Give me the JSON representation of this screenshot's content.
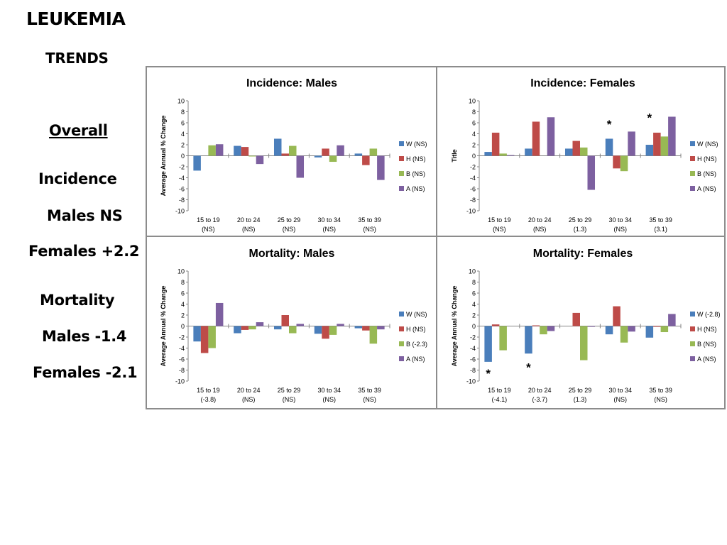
{
  "sidebar": {
    "title": "LEUKEMIA",
    "subtitle": "TRENDS",
    "overall": "Overall",
    "incidence": "Incidence",
    "incidence_males": "Males NS",
    "incidence_females": "Females +2.2",
    "mortality": "Mortality",
    "mortality_males": "Males -1.4",
    "mortality_females": "Females -2.1"
  },
  "colors": {
    "W": "#4a7ebb",
    "H": "#be4b48",
    "B": "#98b954",
    "A": "#7d60a0",
    "axis": "#868686",
    "frame": "#8c8c8c"
  },
  "chart_data": [
    {
      "type": "bar",
      "title": "Incidence: Males",
      "ylabel": "Average Annual % Change",
      "xlabel": "",
      "ylim": [
        -10,
        10
      ],
      "yticks": [
        10,
        8,
        6,
        4,
        2,
        0,
        -2,
        -4,
        -6,
        -8,
        -10
      ],
      "categories": [
        "15 to 19",
        "20 to 24",
        "25 to 29",
        "30 to 34",
        "35 to 39"
      ],
      "category_sublabels": [
        "(NS)",
        "(NS)",
        "(NS)",
        "(NS)",
        "(NS)"
      ],
      "legend_position": "right",
      "series": [
        {
          "key": "W",
          "name": "W (NS)",
          "values": [
            -2.7,
            1.8,
            3.1,
            -0.3,
            0.4
          ]
        },
        {
          "key": "H",
          "name": "H (NS)",
          "values": [
            0.0,
            1.6,
            0.4,
            1.3,
            -1.7
          ]
        },
        {
          "key": "B",
          "name": "B (NS)",
          "values": [
            1.9,
            -0.1,
            1.8,
            -1.1,
            1.3
          ]
        },
        {
          "key": "A",
          "name": "A (NS)",
          "values": [
            2.1,
            -1.5,
            -4.0,
            1.9,
            -4.4
          ]
        }
      ],
      "annotations": []
    },
    {
      "type": "bar",
      "title": "Incidence: Females",
      "ylabel": "Title",
      "xlabel": "",
      "ylim": [
        -10,
        10
      ],
      "yticks": [
        10,
        8,
        6,
        4,
        2,
        0,
        -2,
        -4,
        -6,
        -8,
        -10
      ],
      "categories": [
        "15 to 19",
        "20 to 24",
        "25 to 29",
        "30 to 34",
        "35 to 39"
      ],
      "category_sublabels": [
        "(NS)",
        "(NS)",
        "(1.3)",
        "(NS)",
        "(3.1)"
      ],
      "legend_position": "right",
      "series": [
        {
          "key": "W",
          "name": "W (NS)",
          "values": [
            0.7,
            1.3,
            1.3,
            3.1,
            2.0
          ]
        },
        {
          "key": "H",
          "name": "H (NS)",
          "values": [
            4.2,
            6.2,
            2.7,
            -2.3,
            4.2
          ]
        },
        {
          "key": "B",
          "name": "B (NS)",
          "values": [
            0.4,
            0.0,
            1.5,
            -2.8,
            3.5
          ]
        },
        {
          "key": "A",
          "name": "A (NS)",
          "values": [
            0.1,
            7.0,
            -6.2,
            4.4,
            7.1
          ]
        }
      ],
      "annotations": [
        {
          "text": "*",
          "category": 3,
          "y": 6.0
        },
        {
          "text": "*",
          "category": 4,
          "y": 7.2
        }
      ]
    },
    {
      "type": "bar",
      "title": "Mortality:  Males",
      "ylabel": "Average Annual % Change",
      "xlabel": "",
      "ylim": [
        -10,
        10
      ],
      "yticks": [
        10,
        8,
        6,
        4,
        2,
        0,
        -2,
        -4,
        -6,
        -8,
        -10
      ],
      "categories": [
        "15 to 19",
        "20 to 24",
        "25 to 29",
        "30 to 34",
        "35 to 39"
      ],
      "category_sublabels": [
        "(-3.8)",
        "(NS)",
        "(NS)",
        "(NS)",
        "(NS)"
      ],
      "legend_position": "right",
      "series": [
        {
          "key": "W",
          "name": "W (NS)",
          "values": [
            -2.8,
            -1.3,
            -0.6,
            -1.4,
            -0.4
          ]
        },
        {
          "key": "H",
          "name": "H (NS)",
          "values": [
            -4.9,
            -0.7,
            2.0,
            -2.3,
            -0.8
          ]
        },
        {
          "key": "B",
          "name": "B (-2.3)",
          "values": [
            -4.0,
            -0.6,
            -1.3,
            -1.6,
            -3.2
          ]
        },
        {
          "key": "A",
          "name": "A (NS)",
          "values": [
            4.2,
            0.7,
            0.4,
            0.4,
            -0.6
          ]
        }
      ],
      "annotations": []
    },
    {
      "type": "bar",
      "title": "Mortality: Females",
      "ylabel": "Average Annual % Change",
      "xlabel": "",
      "ylim": [
        -10,
        10
      ],
      "yticks": [
        10,
        8,
        6,
        4,
        2,
        0,
        -2,
        -4,
        -6,
        -8,
        -10
      ],
      "categories": [
        "15 to 19",
        "20 to 24",
        "25 to 29",
        "30 to 34",
        "35 to 39"
      ],
      "category_sublabels": [
        "(-4.1)",
        "(-3.7)",
        "(1.3)",
        "(NS)",
        "(NS)"
      ],
      "legend_position": "right",
      "series": [
        {
          "key": "W",
          "name": "W (-2.8)",
          "values": [
            -6.5,
            -5.0,
            0.0,
            -1.5,
            -2.1
          ]
        },
        {
          "key": "H",
          "name": "H (NS)",
          "values": [
            0.3,
            0.1,
            2.4,
            3.6,
            -0.1
          ]
        },
        {
          "key": "B",
          "name": "B (NS)",
          "values": [
            -4.4,
            -1.5,
            -6.2,
            -3.0,
            -1.1
          ]
        },
        {
          "key": "A",
          "name": "A (NS)",
          "values": [
            0.0,
            -0.9,
            -0.1,
            -1.0,
            2.2
          ]
        }
      ],
      "annotations": [
        {
          "text": "*",
          "category": 0,
          "y": -8.3
        },
        {
          "text": "*",
          "category": 1,
          "y": -7.2
        }
      ]
    }
  ]
}
